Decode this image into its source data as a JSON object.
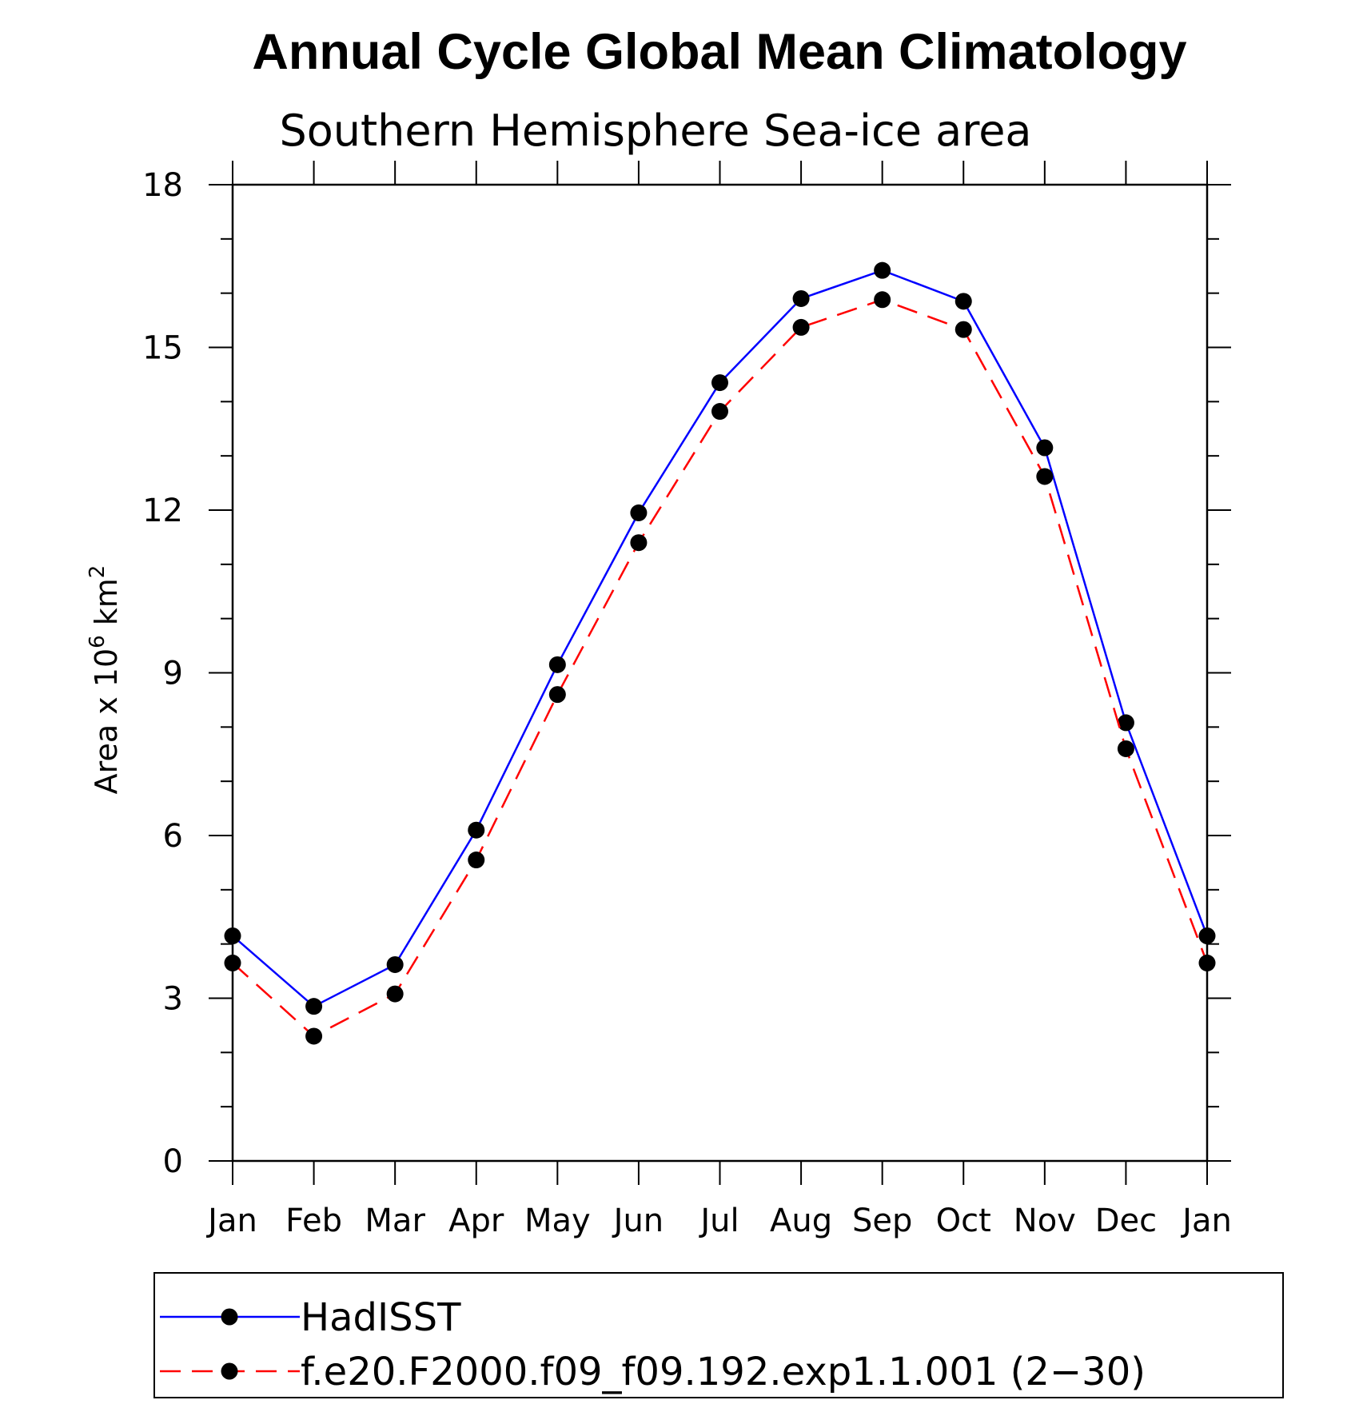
{
  "chart_data": {
    "type": "line",
    "title": "Annual Cycle Global Mean Climatology",
    "subtitle": "Southern Hemisphere Sea-ice area",
    "ylabel_prefix": "Area x 10",
    "ylabel_exp": "6",
    "ylabel_unit": " km",
    "ylabel_unit_exp": "2",
    "xlabel": "",
    "categories": [
      "Jan",
      "Feb",
      "Mar",
      "Apr",
      "May",
      "Jun",
      "Jul",
      "Aug",
      "Sep",
      "Oct",
      "Nov",
      "Dec",
      "Jan"
    ],
    "yticks": [
      0,
      3,
      6,
      9,
      12,
      15,
      18
    ],
    "ylim": [
      0,
      18
    ],
    "grid": false,
    "legend_position": "bottom",
    "series": [
      {
        "name": "HadISST",
        "color": "#0000ff",
        "dash": "solid",
        "marker": "filled-circle",
        "values": [
          4.15,
          2.85,
          3.62,
          6.1,
          9.15,
          11.95,
          14.35,
          15.9,
          16.42,
          15.85,
          13.15,
          8.08,
          4.15
        ]
      },
      {
        "name": "f.e20.F2000.f09_f09.192.exp1.1.001 (2−30)",
        "color": "#ff0000",
        "dash": "dashed",
        "marker": "filled-circle",
        "values": [
          3.65,
          2.3,
          3.08,
          5.55,
          8.6,
          11.4,
          13.82,
          15.37,
          15.88,
          15.33,
          12.62,
          7.6,
          3.65
        ]
      }
    ]
  }
}
